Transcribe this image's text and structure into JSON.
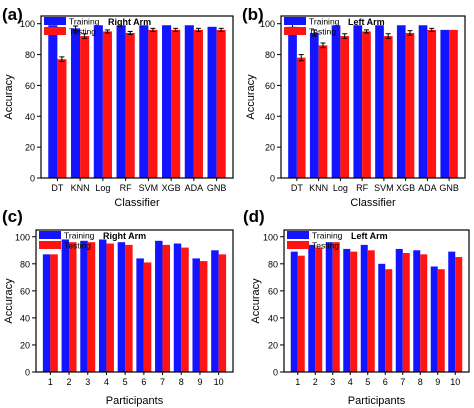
{
  "colors": {
    "training": "#1414ff",
    "testing": "#ff1414",
    "error_bar": "#000000"
  },
  "chart_data": [
    {
      "panel": "(a)",
      "type": "bar",
      "title": "Right Arm",
      "xlabel": "Classifier",
      "ylabel": "Accuracy",
      "ylim": [
        0,
        105
      ],
      "yticks": [
        "0",
        "20",
        "40",
        "60",
        "80",
        "100"
      ],
      "legend": "top-left",
      "categories": [
        "DT",
        "KNN",
        "Log",
        "RF",
        "SVM",
        "XGB",
        "ADA",
        "GNB"
      ],
      "series": [
        {
          "name": "Training",
          "values": [
            99,
            97,
            99,
            99,
            99,
            99,
            99,
            98
          ],
          "errors": [
            0,
            1.5,
            0,
            0,
            0,
            0,
            0,
            0
          ]
        },
        {
          "name": "Testing",
          "values": [
            77,
            92,
            95,
            94,
            96,
            96,
            96,
            96
          ],
          "errors": [
            1.5,
            1.5,
            1,
            1,
            1,
            1,
            1,
            1
          ]
        }
      ]
    },
    {
      "panel": "(b)",
      "type": "bar",
      "title": "Left Arm",
      "xlabel": "Classifier",
      "ylabel": "Accuracy",
      "ylim": [
        0,
        105
      ],
      "yticks": [
        "0",
        "20",
        "40",
        "60",
        "80",
        "100"
      ],
      "legend": "top-left",
      "categories": [
        "DT",
        "KNN",
        "Log",
        "RF",
        "SVM",
        "XGB",
        "ADA",
        "GNB"
      ],
      "series": [
        {
          "name": "Training",
          "values": [
            98,
            94,
            99,
            99,
            99,
            99,
            99,
            96
          ],
          "errors": [
            1.5,
            2,
            0,
            0,
            0,
            0,
            0,
            0
          ]
        },
        {
          "name": "Testing",
          "values": [
            78,
            86,
            92,
            95,
            92,
            94,
            96,
            96
          ],
          "errors": [
            2,
            1.5,
            1.5,
            1,
            1.5,
            1.5,
            1,
            0
          ]
        }
      ]
    },
    {
      "panel": "(c)",
      "type": "bar",
      "title": "Right Arm",
      "xlabel": "Participants",
      "ylabel": "Accuracy",
      "ylim": [
        0,
        105
      ],
      "yticks": [
        "0",
        "20",
        "40",
        "60",
        "80",
        "100"
      ],
      "legend": "top-left",
      "categories": [
        "1",
        "2",
        "3",
        "4",
        "5",
        "6",
        "7",
        "8",
        "9",
        "10"
      ],
      "series": [
        {
          "name": "Training",
          "values": [
            87,
            98,
            97,
            98,
            96,
            84,
            97,
            95,
            84,
            90
          ]
        },
        {
          "name": "Testing",
          "values": [
            87,
            96,
            96,
            95,
            94,
            81,
            94,
            92,
            82,
            87
          ]
        }
      ]
    },
    {
      "panel": "(d)",
      "type": "bar",
      "title": "Left Arm",
      "xlabel": "Participants",
      "ylabel": "Accuracy",
      "ylim": [
        0,
        105
      ],
      "yticks": [
        "0",
        "20",
        "40",
        "60",
        "80",
        "100"
      ],
      "legend": "top-left",
      "categories": [
        "1",
        "2",
        "3",
        "4",
        "5",
        "6",
        "7",
        "8",
        "9",
        "10"
      ],
      "series": [
        {
          "name": "Training",
          "values": [
            89,
            94,
            96,
            91,
            94,
            80,
            91,
            90,
            78,
            89
          ]
        },
        {
          "name": "Testing",
          "values": [
            86,
            92,
            96,
            89,
            90,
            76,
            88,
            87,
            76,
            85
          ]
        }
      ]
    }
  ]
}
